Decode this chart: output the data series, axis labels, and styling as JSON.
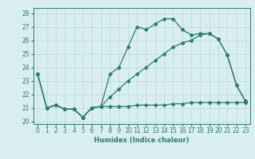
{
  "xlabel": "Humidex (Indice chaleur)",
  "x_values": [
    0,
    1,
    2,
    3,
    4,
    5,
    6,
    7,
    8,
    9,
    10,
    11,
    12,
    13,
    14,
    15,
    16,
    17,
    18,
    19,
    20,
    21,
    22,
    23
  ],
  "line1": [
    23.5,
    21.0,
    21.2,
    20.9,
    20.9,
    20.3,
    21.0,
    21.1,
    21.1,
    21.1,
    21.1,
    21.2,
    21.2,
    21.2,
    21.2,
    21.3,
    21.3,
    21.4,
    21.4,
    21.4,
    21.4,
    21.4,
    21.4,
    21.4
  ],
  "line2": [
    23.5,
    21.0,
    21.2,
    20.9,
    20.9,
    20.3,
    21.0,
    21.1,
    23.5,
    24.0,
    25.5,
    27.0,
    26.8,
    27.2,
    27.6,
    27.6,
    26.8,
    26.4,
    26.5,
    26.5,
    26.1,
    24.9,
    22.7,
    21.5
  ],
  "line3": [
    23.5,
    21.0,
    21.2,
    20.9,
    20.9,
    20.3,
    21.0,
    21.1,
    21.8,
    22.4,
    23.0,
    23.5,
    24.0,
    24.5,
    25.0,
    25.5,
    25.8,
    26.0,
    26.4,
    26.5,
    26.1,
    24.9,
    22.7,
    21.5
  ],
  "ylim": [
    19.8,
    28.4
  ],
  "xlim": [
    -0.5,
    23.5
  ],
  "yticks": [
    20,
    21,
    22,
    23,
    24,
    25,
    26,
    27,
    28
  ],
  "xticks": [
    0,
    1,
    2,
    3,
    4,
    5,
    6,
    7,
    8,
    9,
    10,
    11,
    12,
    13,
    14,
    15,
    16,
    17,
    18,
    19,
    20,
    21,
    22,
    23
  ],
  "line_color": "#2d7b6e",
  "bg_color": "#d8eef0",
  "grid_color": "#b8d8dc",
  "marker": "D",
  "marker_size": 2.0,
  "line_width": 0.9,
  "tick_fontsize": 5.5,
  "xlabel_fontsize": 6.0
}
